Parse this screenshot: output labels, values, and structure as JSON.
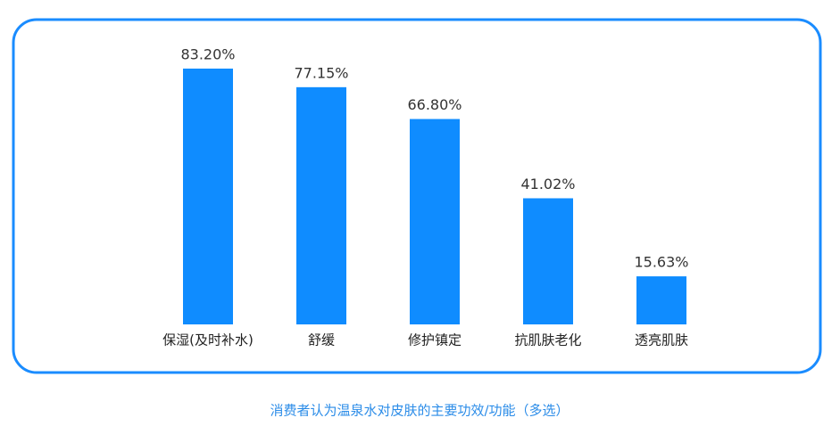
{
  "chart_data": {
    "type": "bar",
    "title": "消费者认为温泉水对皮肤的主要功效/功能（多选）",
    "categories": [
      "保湿(及时补水)",
      "舒缓",
      "修护镇定",
      "抗肌肤老化",
      "透亮肌肤"
    ],
    "values": [
      83.2,
      77.15,
      66.8,
      41.02,
      15.63
    ],
    "value_labels": [
      "83.20%",
      "77.15%",
      "66.80%",
      "41.02%",
      "15.63%"
    ],
    "color": "#0f8cff"
  }
}
